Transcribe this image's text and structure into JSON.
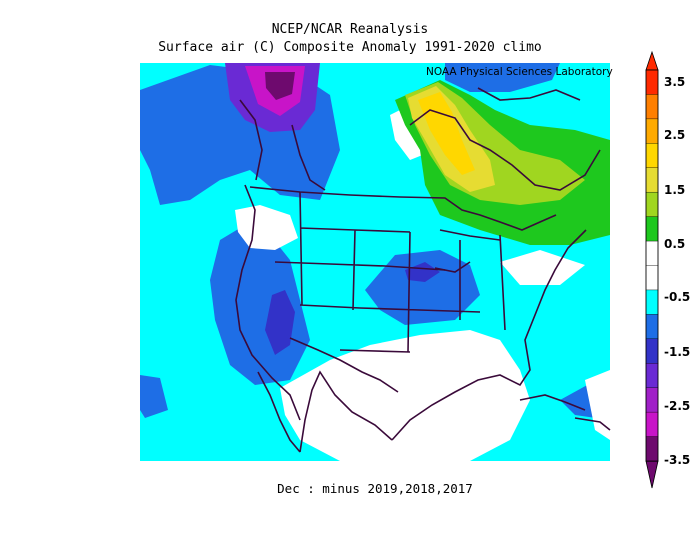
{
  "header": {
    "line1": "NCEP/NCAR Reanalysis",
    "line2": "Surface air (C) Composite Anomaly 1991-2020 climo",
    "credit": "NOAA Physical Sciences Laboratory"
  },
  "footer": {
    "caption": "Dec :  minus 2019,2018,2017"
  },
  "colorbar": {
    "labels": [
      "3.5",
      "2.5",
      "1.5",
      "0.5",
      "-0.5",
      "-1.5",
      "-2.5",
      "-3.5"
    ],
    "colors": [
      "#ff2a00",
      "#ff7f00",
      "#ffaa00",
      "#ffd700",
      "#e6dc32",
      "#a0d620",
      "#1ec81e",
      "#ffffff",
      "#ffffff",
      "#00ffff",
      "#1e6ee6",
      "#3232c8",
      "#6a2ad4",
      "#a020c8",
      "#c814c8",
      "#6e0a6e"
    ]
  }
}
